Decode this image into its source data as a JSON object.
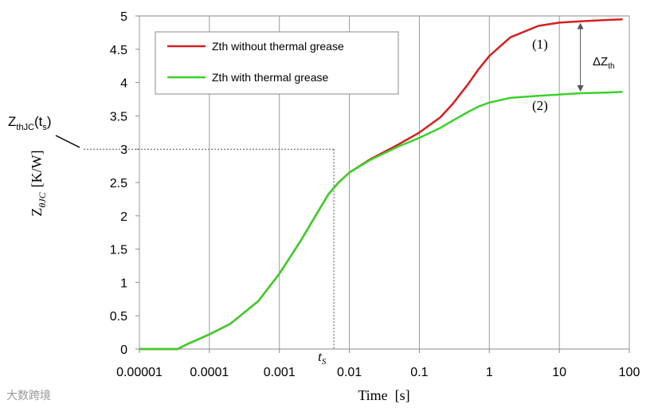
{
  "chart_data": {
    "type": "line",
    "xscale": "log",
    "xlim": [
      1e-05,
      100
    ],
    "ylim": [
      0,
      5
    ],
    "x_ticks": [
      "0.00001",
      "0.0001",
      "0.001",
      "0.01",
      "0.1",
      "1",
      "10",
      "100"
    ],
    "y_ticks": [
      "0",
      "0.5",
      "1",
      "1.5",
      "2",
      "2.5",
      "3",
      "3.5",
      "4",
      "4.5",
      "5"
    ],
    "xlabel": "Time  [s]",
    "ylabel": {
      "main": "Z",
      "sub": "θJC",
      "unit": "[K/W]"
    },
    "grid": {
      "vertical": true,
      "horizontal": false
    },
    "legend_position": "top-left",
    "series": [
      {
        "name": "Zth without thermal grease",
        "color": "#d42020",
        "x": [
          1e-05,
          3.5e-05,
          5e-05,
          0.0001,
          0.0002,
          0.0005,
          0.001,
          0.002,
          0.003,
          0.005,
          0.007,
          0.01,
          0.02,
          0.05,
          0.1,
          0.2,
          0.3,
          0.5,
          0.7,
          1,
          2,
          5,
          10,
          20,
          50,
          80
        ],
        "y": [
          0,
          0,
          0.08,
          0.22,
          0.38,
          0.72,
          1.13,
          1.62,
          1.93,
          2.32,
          2.5,
          2.65,
          2.85,
          3.07,
          3.25,
          3.48,
          3.68,
          3.98,
          4.2,
          4.4,
          4.68,
          4.85,
          4.9,
          4.92,
          4.94,
          4.95
        ]
      },
      {
        "name": "Zth with thermal grease",
        "color": "#3ad12a",
        "x": [
          1e-05,
          3.5e-05,
          5e-05,
          0.0001,
          0.0002,
          0.0005,
          0.001,
          0.002,
          0.003,
          0.005,
          0.007,
          0.01,
          0.02,
          0.05,
          0.1,
          0.2,
          0.3,
          0.5,
          0.7,
          1,
          2,
          5,
          10,
          20,
          50,
          80
        ],
        "y": [
          0,
          0,
          0.08,
          0.22,
          0.38,
          0.72,
          1.13,
          1.62,
          1.93,
          2.32,
          2.5,
          2.65,
          2.84,
          3.04,
          3.17,
          3.32,
          3.43,
          3.56,
          3.64,
          3.7,
          3.77,
          3.8,
          3.82,
          3.84,
          3.85,
          3.86
        ]
      }
    ],
    "annotations": {
      "curve1_label": "(1)",
      "curve2_label": "(2)",
      "delta_main": "ΔZ",
      "delta_sub": "th",
      "zjc_main": "Z",
      "zjc_sub": "thJC",
      "zjc_paren": "(t",
      "zjc_paren_sub": "s",
      "zjc_close": ")",
      "ts_main": "t",
      "ts_sub": "S",
      "ts_x": 0.006,
      "zjc_y": 3.0,
      "delta_x": 20,
      "delta_y_top": 4.92,
      "delta_y_bottom": 3.84
    }
  },
  "watermark": "大数跨境"
}
